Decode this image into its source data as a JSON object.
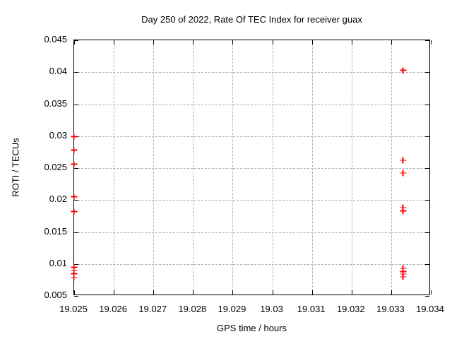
{
  "chart_data": {
    "type": "scatter",
    "title": "Day 250 of 2022, Rate Of TEC Index for receiver guax",
    "xlabel": "GPS time / hours",
    "ylabel": "ROTI / TECUs",
    "xlim": [
      19.025,
      19.034
    ],
    "ylim": [
      0.005,
      0.045
    ],
    "grid": true,
    "legend": "none",
    "border_color": "#000000",
    "grid_color": "#b0b0b0",
    "xticks": [
      {
        "value": 19.025,
        "label": "19.025"
      },
      {
        "value": 19.026,
        "label": "19.026"
      },
      {
        "value": 19.027,
        "label": "19.027"
      },
      {
        "value": 19.028,
        "label": "19.028"
      },
      {
        "value": 19.029,
        "label": "19.029"
      },
      {
        "value": 19.03,
        "label": "19.03"
      },
      {
        "value": 19.031,
        "label": "19.031"
      },
      {
        "value": 19.032,
        "label": "19.032"
      },
      {
        "value": 19.033,
        "label": "19.033"
      },
      {
        "value": 19.034,
        "label": "19.034"
      }
    ],
    "yticks": [
      {
        "value": 0.005,
        "label": "0.005"
      },
      {
        "value": 0.01,
        "label": "0.01"
      },
      {
        "value": 0.015,
        "label": "0.015"
      },
      {
        "value": 0.02,
        "label": "0.02"
      },
      {
        "value": 0.025,
        "label": "0.025"
      },
      {
        "value": 0.03,
        "label": "0.03"
      },
      {
        "value": 0.035,
        "label": "0.035"
      },
      {
        "value": 0.04,
        "label": "0.04"
      },
      {
        "value": 0.045,
        "label": "0.045"
      }
    ],
    "series": [
      {
        "name": "ROTI",
        "marker": "plus",
        "color": "#ff0000",
        "points": [
          {
            "x": 19.025,
            "y": 0.0299
          },
          {
            "x": 19.025,
            "y": 0.0278
          },
          {
            "x": 19.025,
            "y": 0.0256
          },
          {
            "x": 19.025,
            "y": 0.0205
          },
          {
            "x": 19.025,
            "y": 0.0182
          },
          {
            "x": 19.025,
            "y": 0.0095
          },
          {
            "x": 19.025,
            "y": 0.009
          },
          {
            "x": 19.025,
            "y": 0.0085
          },
          {
            "x": 19.025,
            "y": 0.0079
          },
          {
            "x": 19.0333,
            "y": 0.0403
          },
          {
            "x": 19.0333,
            "y": 0.0262
          },
          {
            "x": 19.0333,
            "y": 0.0242
          },
          {
            "x": 19.0333,
            "y": 0.0188
          },
          {
            "x": 19.0333,
            "y": 0.0183
          },
          {
            "x": 19.0333,
            "y": 0.0093
          },
          {
            "x": 19.0333,
            "y": 0.0088
          },
          {
            "x": 19.0333,
            "y": 0.0084
          },
          {
            "x": 19.0333,
            "y": 0.008
          }
        ]
      }
    ]
  }
}
